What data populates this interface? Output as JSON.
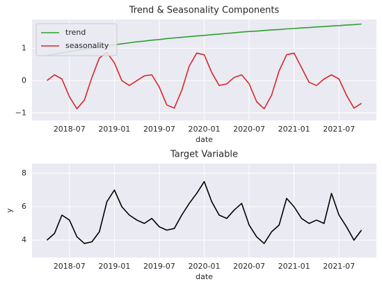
{
  "chart_data": [
    {
      "type": "line",
      "title": "Trend & Seasonality Components",
      "xlabel": "date",
      "x": [
        "2018-04",
        "2018-05",
        "2018-06",
        "2018-07",
        "2018-08",
        "2018-09",
        "2018-10",
        "2018-11",
        "2018-12",
        "2019-01",
        "2019-02",
        "2019-03",
        "2019-04",
        "2019-05",
        "2019-06",
        "2019-07",
        "2019-08",
        "2019-09",
        "2019-10",
        "2019-11",
        "2019-12",
        "2020-01",
        "2020-02",
        "2020-03",
        "2020-04",
        "2020-05",
        "2020-06",
        "2020-07",
        "2020-08",
        "2020-09",
        "2020-10",
        "2020-11",
        "2020-12",
        "2021-01",
        "2021-02",
        "2021-03",
        "2021-04",
        "2021-05",
        "2021-06",
        "2021-07",
        "2021-08",
        "2021-09",
        "2021-10"
      ],
      "series": [
        {
          "name": "trend",
          "color": "#2ca02c",
          "values": [
            0.78,
            0.82,
            0.86,
            0.9,
            0.94,
            0.98,
            1.01,
            1.05,
            1.08,
            1.11,
            1.14,
            1.17,
            1.2,
            1.22,
            1.25,
            1.27,
            1.3,
            1.32,
            1.34,
            1.36,
            1.38,
            1.4,
            1.42,
            1.44,
            1.46,
            1.48,
            1.5,
            1.52,
            1.53,
            1.55,
            1.57,
            1.58,
            1.6,
            1.61,
            1.63,
            1.64,
            1.66,
            1.67,
            1.69,
            1.7,
            1.72,
            1.73,
            1.75
          ]
        },
        {
          "name": "seasonality",
          "color": "#d62728",
          "values": [
            0.0,
            0.18,
            0.05,
            -0.5,
            -0.87,
            -0.6,
            0.1,
            0.7,
            0.87,
            0.55,
            0.0,
            -0.15,
            0.0,
            0.15,
            0.18,
            -0.2,
            -0.75,
            -0.85,
            -0.3,
            0.45,
            0.85,
            0.8,
            0.25,
            -0.15,
            -0.1,
            0.1,
            0.18,
            -0.1,
            -0.65,
            -0.87,
            -0.45,
            0.3,
            0.8,
            0.85,
            0.4,
            -0.05,
            -0.15,
            0.05,
            0.18,
            0.05,
            -0.45,
            -0.85,
            -0.7
          ]
        }
      ],
      "xlim": [
        "2018-02",
        "2021-12"
      ],
      "xticks": [
        "2018-07",
        "2019-01",
        "2019-07",
        "2020-01",
        "2020-07",
        "2021-01",
        "2021-07"
      ],
      "ylim": [
        -1.23,
        1.89
      ],
      "yticks": [
        {
          "value": -1,
          "label": "−1"
        },
        0,
        1
      ],
      "grid": true,
      "legend": "upper left"
    },
    {
      "type": "line",
      "title": "Target Variable",
      "xlabel": "date",
      "ylabel": "y",
      "x": [
        "2018-04",
        "2018-05",
        "2018-06",
        "2018-07",
        "2018-08",
        "2018-09",
        "2018-10",
        "2018-11",
        "2018-12",
        "2019-01",
        "2019-02",
        "2019-03",
        "2019-04",
        "2019-05",
        "2019-06",
        "2019-07",
        "2019-08",
        "2019-09",
        "2019-10",
        "2019-11",
        "2019-12",
        "2020-01",
        "2020-02",
        "2020-03",
        "2020-04",
        "2020-05",
        "2020-06",
        "2020-07",
        "2020-08",
        "2020-09",
        "2020-10",
        "2020-11",
        "2020-12",
        "2021-01",
        "2021-02",
        "2021-03",
        "2021-04",
        "2021-05",
        "2021-06",
        "2021-07",
        "2021-08",
        "2021-09",
        "2021-10"
      ],
      "series": [
        {
          "color": "#000000",
          "values": [
            4.0,
            4.4,
            5.5,
            5.2,
            4.2,
            3.8,
            3.9,
            4.5,
            6.3,
            7.0,
            6.0,
            5.5,
            5.2,
            5.0,
            5.3,
            4.8,
            4.6,
            4.7,
            5.5,
            6.2,
            6.8,
            7.5,
            6.3,
            5.5,
            5.3,
            5.8,
            6.2,
            4.9,
            4.2,
            3.8,
            4.5,
            4.9,
            6.5,
            6.0,
            5.3,
            5.0,
            5.2,
            5.0,
            6.8,
            5.5,
            4.8,
            4.0,
            4.6
          ]
        }
      ],
      "xlim": [
        "2018-02",
        "2021-12"
      ],
      "xticks": [
        "2018-07",
        "2019-01",
        "2019-07",
        "2020-01",
        "2020-07",
        "2021-01",
        "2021-07"
      ],
      "ylim": [
        2.96,
        8.58
      ],
      "yticks": [
        4,
        6,
        8
      ],
      "grid": true
    }
  ]
}
